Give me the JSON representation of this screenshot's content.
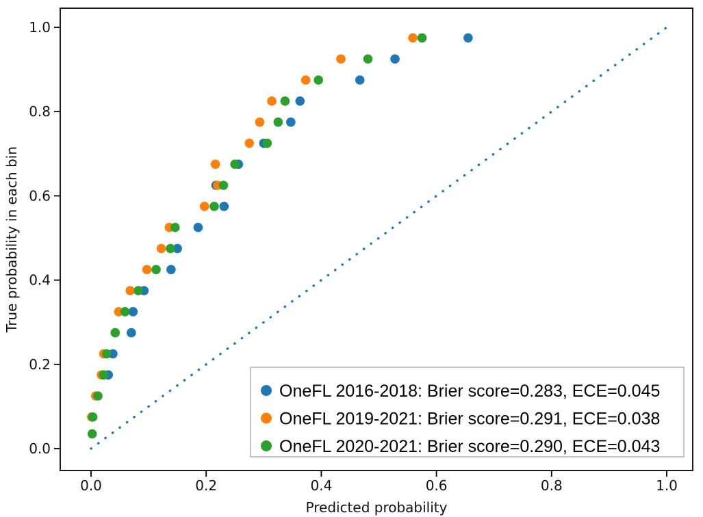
{
  "figure": {
    "background": "#ffffff",
    "plot_border_color": "#000000"
  },
  "chart_data": {
    "type": "scatter",
    "title": "",
    "xlabel": "Predicted probability",
    "ylabel": "True probability in each bin",
    "xlim": [
      -0.054,
      1.045
    ],
    "ylim": [
      -0.052,
      1.045
    ],
    "grid": false,
    "xticks": [
      "0.0",
      "0.2",
      "0.4",
      "0.6",
      "0.8",
      "1.0"
    ],
    "xtick_values": [
      0,
      0.2,
      0.4,
      0.6,
      0.8,
      1.0
    ],
    "yticks": [
      "0.0",
      "0.2",
      "0.4",
      "0.6",
      "0.8",
      "1.0"
    ],
    "ytick_values": [
      0,
      0.2,
      0.4,
      0.6,
      0.8,
      1.0
    ],
    "reference_line": {
      "name": "perfect-calibration-line",
      "from": [
        0,
        0
      ],
      "to": [
        1,
        1
      ],
      "style": "dotted",
      "color": "#1f77b4"
    },
    "legend": {
      "position": "lower right",
      "border_color": "#b5b5b5",
      "background": "#ffffff"
    },
    "series": [
      {
        "name": "OneFL 2016-2018",
        "label": "OneFL 2016-2018: Brier score=0.283, ECE=0.045",
        "color": "#1f77b4",
        "points": [
          [
            0.03,
            0.175
          ],
          [
            0.038,
            0.225
          ],
          [
            0.07,
            0.275
          ],
          [
            0.073,
            0.325
          ],
          [
            0.092,
            0.375
          ],
          [
            0.139,
            0.425
          ],
          [
            0.15,
            0.475
          ],
          [
            0.186,
            0.525
          ],
          [
            0.231,
            0.575
          ],
          [
            0.217,
            0.625
          ],
          [
            0.256,
            0.675
          ],
          [
            0.3,
            0.725
          ],
          [
            0.347,
            0.775
          ],
          [
            0.363,
            0.825
          ],
          [
            0.467,
            0.875
          ],
          [
            0.528,
            0.925
          ],
          [
            0.655,
            0.975
          ]
        ]
      },
      {
        "name": "OneFL 2019-2021",
        "label": "OneFL 2019-2021: Brier score=0.291, ECE=0.038",
        "color": "#ff7f0e",
        "points": [
          [
            0.001,
            0.075
          ],
          [
            0.008,
            0.125
          ],
          [
            0.018,
            0.175
          ],
          [
            0.022,
            0.225
          ],
          [
            0.042,
            0.275
          ],
          [
            0.048,
            0.325
          ],
          [
            0.068,
            0.375
          ],
          [
            0.097,
            0.425
          ],
          [
            0.122,
            0.475
          ],
          [
            0.136,
            0.525
          ],
          [
            0.197,
            0.575
          ],
          [
            0.22,
            0.625
          ],
          [
            0.216,
            0.675
          ],
          [
            0.275,
            0.725
          ],
          [
            0.293,
            0.775
          ],
          [
            0.314,
            0.825
          ],
          [
            0.373,
            0.875
          ],
          [
            0.434,
            0.925
          ],
          [
            0.559,
            0.975
          ]
        ]
      },
      {
        "name": "OneFL 2020-2021",
        "label": "OneFL 2020-2021: Brier score=0.290, ECE=0.043",
        "color": "#2ca02c",
        "points": [
          [
            0.002,
            0.035
          ],
          [
            0.003,
            0.075
          ],
          [
            0.012,
            0.125
          ],
          [
            0.022,
            0.175
          ],
          [
            0.027,
            0.225
          ],
          [
            0.042,
            0.275
          ],
          [
            0.059,
            0.325
          ],
          [
            0.082,
            0.375
          ],
          [
            0.113,
            0.425
          ],
          [
            0.138,
            0.475
          ],
          [
            0.146,
            0.525
          ],
          [
            0.214,
            0.575
          ],
          [
            0.23,
            0.625
          ],
          [
            0.25,
            0.675
          ],
          [
            0.306,
            0.725
          ],
          [
            0.325,
            0.775
          ],
          [
            0.337,
            0.825
          ],
          [
            0.395,
            0.875
          ],
          [
            0.481,
            0.925
          ],
          [
            0.575,
            0.975
          ]
        ]
      }
    ]
  }
}
